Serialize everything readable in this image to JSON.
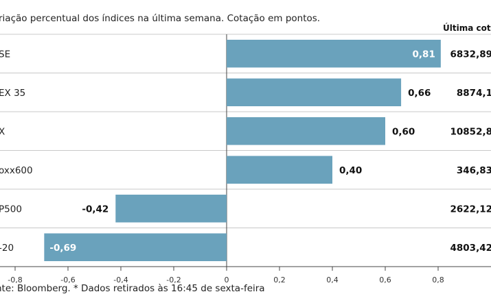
{
  "chart_data": {
    "type": "bar",
    "orientation": "horizontal",
    "subtitle": "riação percentual dos índices na última semana. Cotação em pontos.",
    "price_header": "Última cotaç",
    "source": "nte: Bloomberg.  * Dados retirados às 16:45 de sexta-feira",
    "categories": [
      "SE",
      "EX 35",
      "X",
      "oxx600",
      "P500",
      "-20"
    ],
    "values": [
      0.81,
      0.66,
      0.6,
      0.4,
      -0.42,
      -0.69
    ],
    "value_labels": [
      "0,81",
      "0,66",
      "0,60",
      "0,40",
      "-0,42",
      "-0,69"
    ],
    "prices": [
      "6832,89",
      "8874,1",
      "10852,8",
      "346,83",
      "2622,12",
      "4803,42"
    ],
    "xlim": [
      -0.85,
      0.85
    ],
    "xticks": [
      -0.8,
      -0.6,
      -0.4,
      -0.2,
      0,
      0.2,
      0.4,
      0.6,
      0.8
    ],
    "xtick_labels": [
      "-0,8",
      "-0,6",
      "-0,4",
      "-0,2",
      "0",
      "0,2",
      "0,4",
      "0,6",
      "0,8"
    ],
    "bar_color": "#6aa2bc"
  }
}
